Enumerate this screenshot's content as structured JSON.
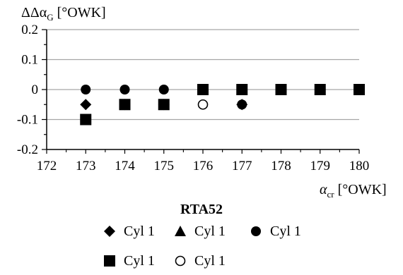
{
  "chart_data": {
    "type": "scatter",
    "ylabel_main": "ΔΔα",
    "ylabel_sub": "G",
    "ylabel_unit": " [°OWK]",
    "xlabel_main": "α",
    "xlabel_sub": "cr",
    "xlabel_unit": " [°OWK]",
    "xlim": [
      172,
      180
    ],
    "ylim": [
      -0.2,
      0.2
    ],
    "x_ticks": [
      172,
      173,
      174,
      175,
      176,
      177,
      178,
      179,
      180
    ],
    "y_ticks": [
      0.2,
      0.1,
      0,
      -0.1,
      -0.2
    ],
    "y_tick_labels": [
      "0.2",
      "0.1",
      "0",
      "-0.1",
      "-0.2"
    ],
    "grid": "horizontal",
    "legend_title": "RTA52",
    "series": [
      {
        "name": "Cyl 1",
        "marker": "diamond",
        "x": [
          173,
          174,
          175,
          176,
          177,
          178,
          179,
          180
        ],
        "y": [
          -0.05,
          -0.05,
          -0.05,
          0,
          -0.05,
          0,
          0,
          0
        ]
      },
      {
        "name": "Cyl 1",
        "marker": "triangle",
        "x": [
          174,
          175,
          176,
          177,
          178,
          179,
          180
        ],
        "y": [
          -0.05,
          -0.05,
          0,
          0,
          0,
          0,
          0
        ]
      },
      {
        "name": "Cyl 1",
        "marker": "circle-filled",
        "x": [
          173,
          174,
          175,
          177
        ],
        "y": [
          0,
          0,
          0,
          -0.05
        ]
      },
      {
        "name": "Cyl 1",
        "marker": "square",
        "x": [
          173,
          174,
          175,
          176,
          177,
          178,
          179,
          180
        ],
        "y": [
          -0.1,
          -0.05,
          -0.05,
          0,
          0,
          0,
          0,
          0
        ]
      },
      {
        "name": "Cyl 1",
        "marker": "circle-open",
        "x": [
          176
        ],
        "y": [
          -0.05
        ]
      }
    ]
  }
}
